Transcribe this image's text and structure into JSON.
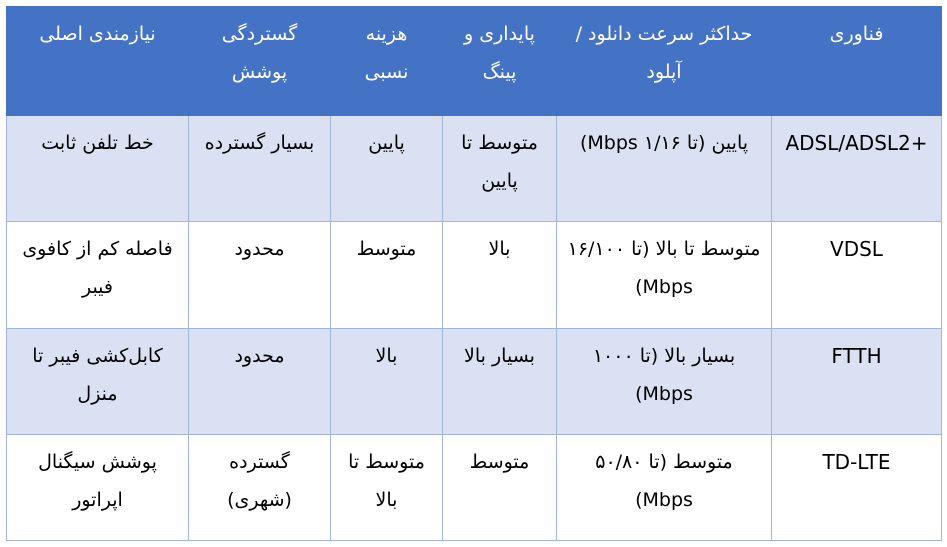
{
  "colors": {
    "header_background": "#4472c4",
    "header_text": "#ffffff",
    "band_row_background": "#d9e1f2",
    "plain_row_background": "#ffffff",
    "grid_line": "#9fb4de"
  },
  "table": {
    "headers": {
      "technology": "فناوری",
      "max_speed": "حداکثر سرعت دانلود / آپلود",
      "stability_ping": "پایداری و پینگ",
      "relative_cost": "هزینه نسبی",
      "coverage": "گستردگی پوشش",
      "main_requirement": "نیازمندی اصلی"
    },
    "rows": [
      {
        "technology": "ADSL/ADSL2+",
        "max_speed": "پایین (تا ۱/۱۶ Mbps)",
        "stability_ping": "متوسط تا پایین",
        "relative_cost": "پایین",
        "coverage": "بسیار گسترده",
        "main_requirement": "خط تلفن ثابت"
      },
      {
        "technology": "VDSL",
        "max_speed": "متوسط تا بالا (تا ۱۶/۱۰۰ Mbps)",
        "stability_ping": "بالا",
        "relative_cost": "متوسط",
        "coverage": "محدود",
        "main_requirement": "فاصله کم از کافوی فیبر"
      },
      {
        "technology": "FTTH",
        "max_speed": "بسیار بالا (تا ۱۰۰۰ Mbps)",
        "stability_ping": "بسیار بالا",
        "relative_cost": "بالا",
        "coverage": "محدود",
        "main_requirement": "کابل‌کشی فیبر تا منزل"
      },
      {
        "technology": "TD-LTE",
        "max_speed": "متوسط (تا ۵۰/۸۰ Mbps)",
        "stability_ping": "متوسط",
        "relative_cost": "متوسط تا بالا",
        "coverage": "گسترده (شهری)",
        "main_requirement": "پوشش سیگنال اپراتور"
      }
    ]
  }
}
